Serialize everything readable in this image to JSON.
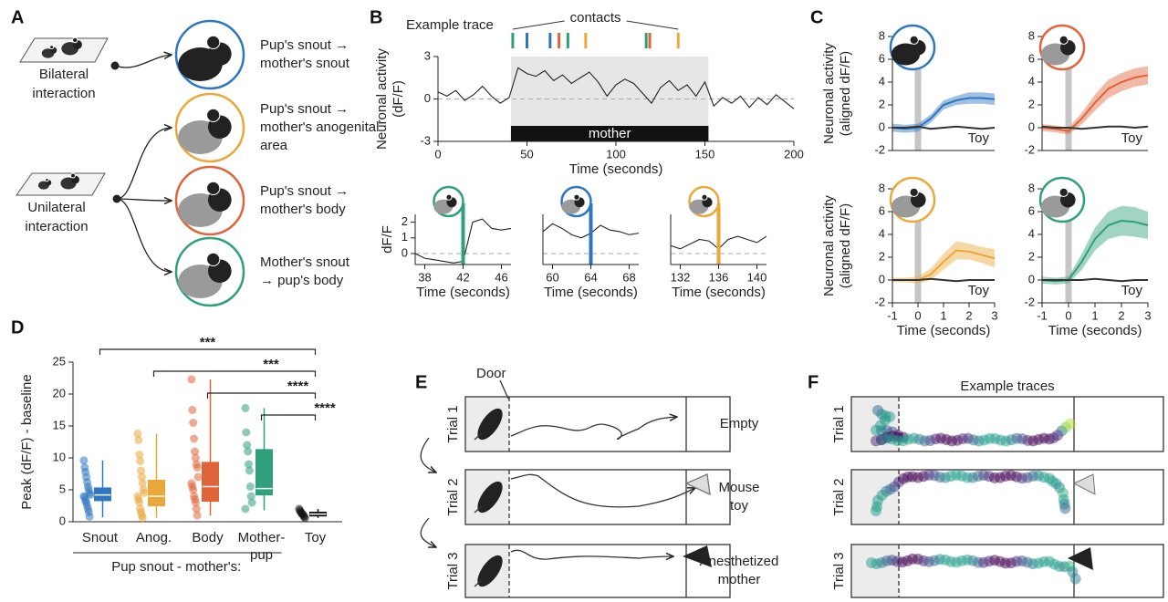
{
  "panel_labels": [
    "A",
    "B",
    "C",
    "D",
    "E",
    "F"
  ],
  "panel_a": {
    "bilateral": [
      "Bilateral",
      "interaction"
    ],
    "unilateral": [
      "Unilateral",
      "interaction"
    ],
    "items": [
      {
        "lines": [
          "Pup's snout →",
          "mother's snout"
        ],
        "color": "#2f76c0"
      },
      {
        "lines": [
          "Pup's snout →",
          "mother's anogenital",
          "area"
        ],
        "color": "#eaa83a"
      },
      {
        "lines": [
          "Pup's snout →",
          "mother's body"
        ],
        "color": "#e0643a"
      },
      {
        "lines": [
          "Mother's snout",
          "→ pup's body"
        ],
        "color": "#2fa07a"
      }
    ]
  },
  "chart_data": [
    {
      "type": "line",
      "title": "Example trace",
      "annotation": "contacts",
      "event_label": "mother",
      "ylabel": [
        "Neuronal activity",
        "(dF/F)"
      ],
      "xlabel": "Time (seconds)",
      "xlim": [
        0,
        200
      ],
      "xticks": [
        0,
        50,
        100,
        150,
        200
      ],
      "ylim": [
        -3,
        3
      ],
      "yticks": [
        -3,
        0,
        3
      ],
      "hline": 0,
      "event_span": [
        41,
        152
      ],
      "contacts": [
        {
          "x": 42,
          "color": "#2fa07a"
        },
        {
          "x": 50,
          "color": "#2f76c0"
        },
        {
          "x": 63,
          "color": "#2f76c0"
        },
        {
          "x": 68,
          "color": "#e0643a"
        },
        {
          "x": 73,
          "color": "#2fa07a"
        },
        {
          "x": 83,
          "color": "#eaa83a"
        },
        {
          "x": 117,
          "color": "#2fa07a"
        },
        {
          "x": 119,
          "color": "#e0643a"
        },
        {
          "x": 135,
          "color": "#eaa83a"
        }
      ],
      "x": [
        0,
        5,
        10,
        15,
        20,
        25,
        30,
        35,
        40,
        45,
        50,
        55,
        60,
        65,
        70,
        75,
        80,
        85,
        90,
        95,
        100,
        105,
        110,
        115,
        120,
        125,
        130,
        135,
        140,
        145,
        150,
        155,
        160,
        165,
        170,
        175,
        180,
        185,
        190,
        195,
        200
      ],
      "series": [
        {
          "color": "#222",
          "values": [
            0.5,
            0.2,
            0.6,
            -0.1,
            0.3,
            0.9,
            0.2,
            -0.3,
            0.1,
            2.2,
            1.8,
            1.6,
            2.0,
            1.3,
            1.7,
            1.1,
            1.5,
            1.9,
            1.2,
            0.2,
            1.0,
            1.4,
            1.1,
            0.4,
            -0.3,
            0.8,
            1.3,
            0.6,
            1.0,
            0.2,
            1.2,
            -0.5,
            0.1,
            -0.3,
            0.2,
            -0.6,
            0.1,
            -0.4,
            0.3,
            -0.2,
            -0.7
          ]
        }
      ]
    },
    {
      "type": "line",
      "ylabel": [
        "dF/F"
      ],
      "xlabel": "Time (seconds)",
      "xlim": [
        37,
        47
      ],
      "xticks": [
        38,
        42,
        46
      ],
      "ylim": [
        -0.7,
        2.5
      ],
      "yticks": [
        0,
        1,
        2
      ],
      "hline": 0,
      "event_x": 42,
      "event_color": "#2fa07a",
      "x": [
        37,
        38,
        39,
        40,
        41,
        42,
        43,
        44,
        45,
        46,
        47
      ],
      "series": [
        {
          "color": "#222",
          "values": [
            0,
            -0.3,
            -0.4,
            -0.5,
            -0.6,
            -0.5,
            2.0,
            2.2,
            1.6,
            1.5,
            1.6
          ]
        }
      ]
    },
    {
      "type": "line",
      "xlabel": "Time (seconds)",
      "xlim": [
        59,
        69
      ],
      "xticks": [
        60,
        64,
        68
      ],
      "ylim": [
        -0.7,
        2.5
      ],
      "hline": 0,
      "event_x": 64,
      "event_color": "#2f76c0",
      "x": [
        59,
        60,
        61,
        62,
        63,
        64,
        65,
        66,
        67,
        68,
        69
      ],
      "series": [
        {
          "color": "#222",
          "values": [
            1.4,
            1.9,
            1.6,
            1.2,
            1.0,
            1.3,
            1.8,
            1.5,
            1.4,
            1.2,
            1.3
          ]
        }
      ]
    },
    {
      "type": "line",
      "xlabel": "Time (seconds)",
      "xlim": [
        131,
        141
      ],
      "xticks": [
        132,
        136,
        140
      ],
      "ylim": [
        -0.7,
        2.5
      ],
      "hline": 0,
      "event_x": 136,
      "event_color": "#eaa83a",
      "x": [
        131,
        132,
        133,
        134,
        135,
        136,
        137,
        138,
        139,
        140,
        141
      ],
      "series": [
        {
          "color": "#222",
          "values": [
            0.5,
            0.3,
            0.6,
            0.9,
            0.8,
            0.3,
            0.9,
            1.1,
            0.9,
            0.7,
            1.1
          ]
        }
      ]
    },
    {
      "type": "line",
      "ylabel": [
        "Neuronal activity",
        "(aligned dF/F)"
      ],
      "xlim": [
        -1,
        3
      ],
      "ylim": [
        -2,
        8
      ],
      "yticks": [
        -2,
        0,
        2,
        4,
        6,
        8
      ],
      "event_x": 0,
      "x": [
        -1,
        -0.5,
        0,
        0.5,
        1,
        1.5,
        2,
        2.5,
        3
      ],
      "series": [
        {
          "color": "#2f76c0",
          "values": [
            0,
            -0.1,
            0,
            0.8,
            2.0,
            2.4,
            2.6,
            2.6,
            2.5
          ],
          "lower": [
            -0.35,
            -0.45,
            -0.35,
            0.45,
            1.6,
            2.0,
            2.1,
            2.1,
            2.0
          ],
          "upper": [
            0.35,
            0.25,
            0.35,
            1.15,
            2.4,
            2.8,
            3.1,
            3.1,
            3.0
          ]
        },
        {
          "name": "Toy",
          "color": "#333",
          "values": [
            0,
            0,
            0.1,
            -0.1,
            0,
            0.1,
            0,
            -0.1,
            0
          ]
        }
      ]
    },
    {
      "type": "line",
      "xlim": [
        -1,
        3
      ],
      "ylim": [
        -2,
        8
      ],
      "yticks": [
        -2,
        0,
        2,
        4,
        6,
        8
      ],
      "event_x": 0,
      "x": [
        -1,
        -0.5,
        0,
        0.5,
        1,
        1.5,
        2,
        2.5,
        3
      ],
      "series": [
        {
          "color": "#e0643a",
          "values": [
            0,
            -0.1,
            -0.3,
            0.8,
            2.2,
            3.4,
            4.0,
            4.4,
            4.6
          ],
          "lower": [
            -0.3,
            -0.4,
            -0.6,
            0.3,
            1.5,
            2.6,
            3.2,
            3.6,
            3.8
          ],
          "upper": [
            0.3,
            0.2,
            0,
            1.3,
            2.9,
            4.2,
            4.8,
            5.2,
            5.4
          ]
        },
        {
          "name": "Toy",
          "color": "#333",
          "values": [
            0.1,
            0,
            0,
            -0.1,
            0,
            0.1,
            0.1,
            0,
            0.1
          ]
        }
      ]
    },
    {
      "type": "line",
      "ylabel": [
        "Neuronal activity",
        "(aligned dF/F)"
      ],
      "xlabel": "Time (seconds)",
      "xlim": [
        -1,
        3
      ],
      "xticks": [
        -1,
        0,
        1,
        2,
        3
      ],
      "ylim": [
        -2,
        8
      ],
      "yticks": [
        -2,
        0,
        2,
        4,
        6,
        8
      ],
      "event_x": 0,
      "x": [
        -1,
        -0.5,
        0,
        0.5,
        1,
        1.5,
        2,
        2.5,
        3
      ],
      "series": [
        {
          "color": "#eaa83a",
          "values": [
            0,
            0,
            0,
            0.5,
            1.6,
            2.6,
            2.5,
            2.2,
            1.9
          ],
          "lower": [
            -0.2,
            -0.2,
            -0.3,
            0,
            0.9,
            1.8,
            1.8,
            1.5,
            1.1
          ],
          "upper": [
            0.2,
            0.2,
            0.3,
            1.0,
            2.3,
            3.4,
            3.2,
            2.9,
            2.7
          ]
        },
        {
          "name": "Toy",
          "color": "#333",
          "values": [
            0,
            0,
            0,
            0.1,
            0,
            -0.1,
            0,
            0,
            0
          ]
        }
      ]
    },
    {
      "type": "line",
      "xlabel": "Time (seconds)",
      "xlim": [
        -1,
        3
      ],
      "xticks": [
        -1,
        0,
        1,
        2,
        3
      ],
      "ylim": [
        -2,
        8
      ],
      "yticks": [
        -2,
        0,
        2,
        4,
        6,
        8
      ],
      "event_x": 0,
      "x": [
        -1,
        -0.5,
        0,
        0.5,
        1,
        1.5,
        2,
        2.5,
        3
      ],
      "series": [
        {
          "color": "#2fa07a",
          "values": [
            0,
            -0.1,
            0,
            1.6,
            3.6,
            4.8,
            5.2,
            5.1,
            4.8
          ],
          "lower": [
            -0.3,
            -0.4,
            -0.3,
            0.9,
            2.6,
            3.6,
            3.9,
            3.8,
            3.6
          ],
          "upper": [
            0.3,
            0.2,
            0.3,
            2.3,
            4.6,
            6.0,
            6.5,
            6.4,
            6.0
          ]
        },
        {
          "name": "Toy",
          "color": "#333",
          "values": [
            0,
            0,
            0,
            0,
            0.1,
            0,
            -0.1,
            0,
            0
          ]
        }
      ]
    },
    {
      "type": "box",
      "ylabel": "Peak (dF/F) - baseline",
      "group_label": "Pup snout - mother's:",
      "categories": [
        "Snout",
        "Anog.",
        "Body",
        "Mother-pup",
        "Toy"
      ],
      "colors": [
        "#2f76c0",
        "#eaa83a",
        "#e0643a",
        "#2fa07a",
        "#111111"
      ],
      "ylim": [
        0,
        25
      ],
      "yticks": [
        0,
        5,
        10,
        15,
        20,
        25
      ],
      "boxes": [
        {
          "q1": 3.3,
          "median": 4.2,
          "q3": 5.3,
          "whisker_low": 0.7,
          "whisker_high": 9.6,
          "points": [
            9.6,
            8.5,
            7.8,
            7,
            6.2,
            5.5,
            5,
            4.5,
            4.2,
            4,
            3.8,
            3.3,
            3,
            2.5,
            2,
            1.5,
            0.8
          ]
        },
        {
          "q1": 2.5,
          "median": 4,
          "q3": 6.5,
          "whisker_low": 0.6,
          "whisker_high": 13.8,
          "points": [
            13.8,
            12.8,
            10.5,
            9.5,
            8,
            7,
            6,
            5,
            4.5,
            4,
            3.5,
            3,
            2,
            1.5,
            1,
            0.6
          ]
        },
        {
          "q1": 3.2,
          "median": 5.5,
          "q3": 9.3,
          "whisker_low": 1,
          "whisker_high": 22.3,
          "points": [
            22.3,
            17.5,
            15.5,
            13,
            11,
            10,
            9,
            8.5,
            7,
            6,
            5.5,
            5,
            4,
            3.5,
            3,
            2,
            1
          ]
        },
        {
          "q1": 4.2,
          "median": 5.2,
          "q3": 11.3,
          "whisker_low": 1.8,
          "whisker_high": 17.8,
          "points": [
            17.8,
            14,
            12,
            11,
            9,
            8,
            5.5,
            4,
            3,
            2
          ]
        },
        {
          "q1": 0.9,
          "median": 1.2,
          "q3": 1.5,
          "whisker_low": 0.6,
          "whisker_high": 2,
          "points": [
            2,
            1.7,
            1.5,
            1.3,
            1.2,
            1.0,
            0.8,
            0.6
          ]
        }
      ],
      "comparisons": [
        {
          "label": "***",
          "groups": [
            "Snout",
            "Toy"
          ]
        },
        {
          "label": "***",
          "groups": [
            "Anog.",
            "Toy"
          ]
        },
        {
          "label": "****",
          "groups": [
            "Body",
            "Toy"
          ]
        },
        {
          "label": "****",
          "groups": [
            "Mother-pup",
            "Toy"
          ]
        }
      ]
    }
  ],
  "panel_e": {
    "door": "Door",
    "trials": [
      "Trial 1",
      "Trial 2",
      "Trial 3"
    ],
    "targets": [
      [
        "Empty"
      ],
      [
        "Mouse",
        "toy"
      ],
      [
        "Anesthetized",
        "mother"
      ]
    ]
  },
  "panel_f": {
    "title": "Example traces",
    "trials": [
      "Trial 1",
      "Trial 2",
      "Trial 3"
    ]
  }
}
